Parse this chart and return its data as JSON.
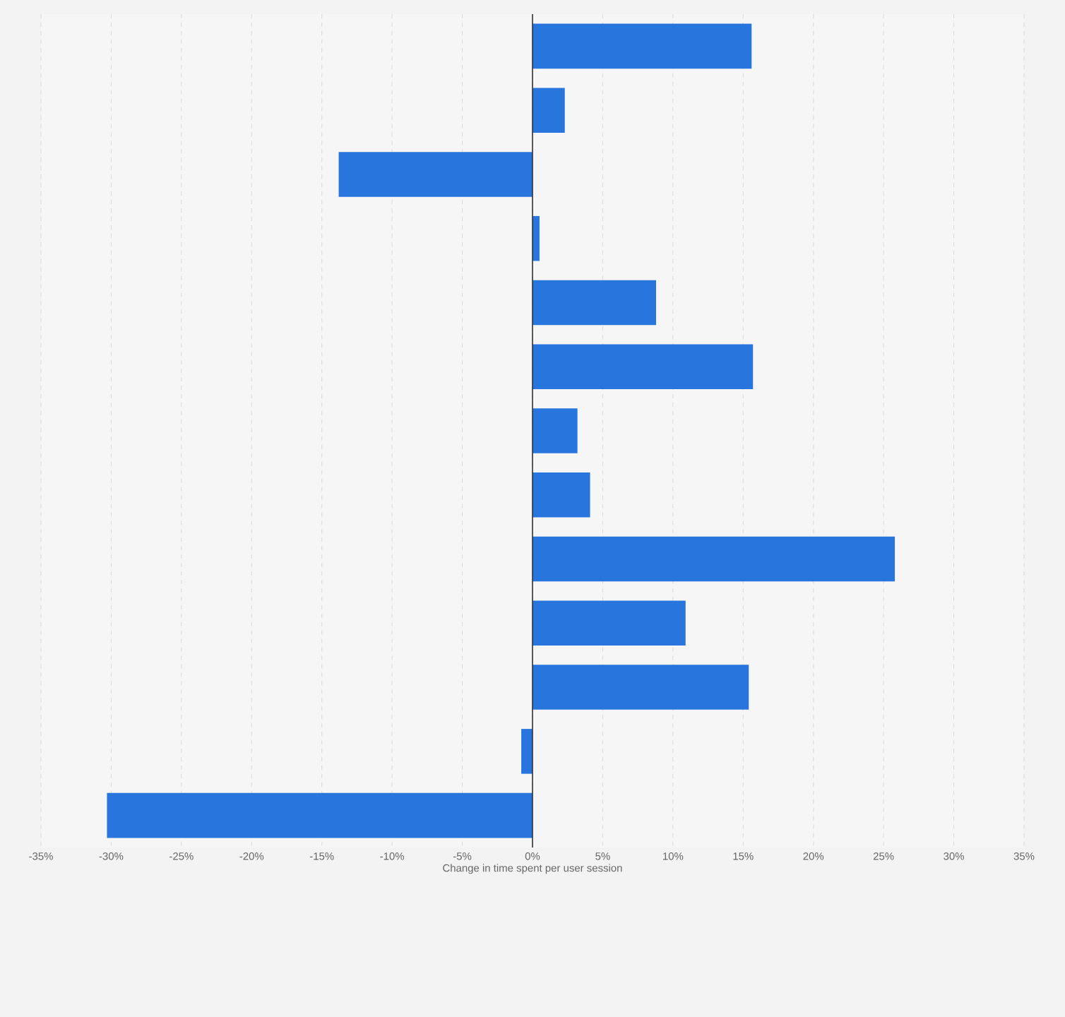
{
  "chart_data": {
    "type": "bar",
    "orientation": "horizontal",
    "categories": [
      null,
      null,
      null,
      null,
      null,
      null,
      null,
      null,
      null,
      null,
      null,
      null,
      null
    ],
    "values": [
      15.6,
      2.3,
      -13.8,
      0.5,
      8.8,
      15.7,
      3.2,
      4.1,
      25.8,
      10.9,
      15.4,
      -0.8,
      -30.3
    ],
    "color": "#2876dd",
    "xlabel": "Change in time spent per user session",
    "xlim": [
      -35,
      35
    ],
    "xticks": [
      {
        "value": -35,
        "label": "-35%"
      },
      {
        "value": -30,
        "label": "-30%"
      },
      {
        "value": -25,
        "label": "-25%"
      },
      {
        "value": -20,
        "label": "-20%"
      },
      {
        "value": -15,
        "label": "-15%"
      },
      {
        "value": -10,
        "label": "-10%"
      },
      {
        "value": -5,
        "label": "-5%"
      },
      {
        "value": 0,
        "label": "0%"
      },
      {
        "value": 5,
        "label": "5%"
      },
      {
        "value": 10,
        "label": "10%"
      },
      {
        "value": 15,
        "label": "15%"
      },
      {
        "value": 20,
        "label": "20%"
      },
      {
        "value": 25,
        "label": "25%"
      },
      {
        "value": 30,
        "label": "30%"
      },
      {
        "value": 35,
        "label": "35%"
      }
    ],
    "grid": "x",
    "tick_labels": "x"
  }
}
